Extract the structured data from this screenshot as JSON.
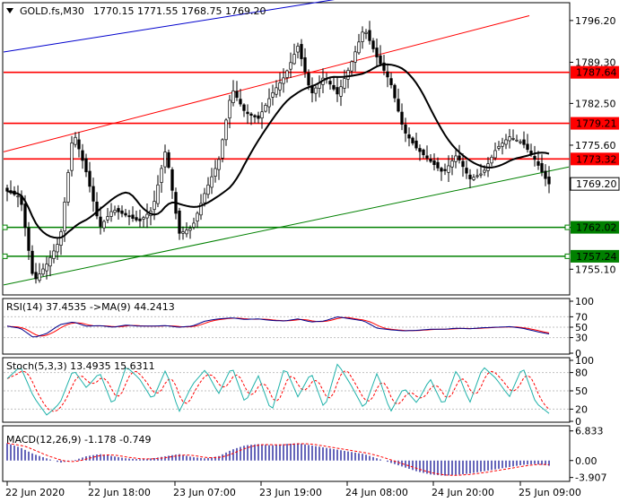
{
  "colors": {
    "frame": "#000000",
    "grid": "#c0c0c0",
    "bull": "#ffffff",
    "bear": "#000000",
    "ma": "#000000",
    "res": "#ff0000",
    "sup": "#008000",
    "channel_up": "#ff0000",
    "channel_hi": "#0000cd",
    "channel_lo": "#008000",
    "rsi": "#00008b",
    "rsi_ma": "#ff0000",
    "stoch_main": "#20b2aa",
    "stoch_sig": "#ff0000",
    "macd_hist": "#00008b",
    "macd_sig": "#ff0000",
    "last_price_bg": "#ffffff"
  },
  "chart_data": [
    {
      "type": "candlestick",
      "title": "GOLD.fs,M30",
      "ohlc_text": "1770.15 1771.55 1768.75 1769.20",
      "ylim": [
        1751,
        1799
      ],
      "y_ticks": [
        "1796.20",
        "1789.30",
        "1782.50",
        "1775.60",
        "1768.75",
        "1762.00",
        "1755.10"
      ],
      "levels": [
        {
          "label": "1787.64",
          "value": 1787.64,
          "kind": "resistance"
        },
        {
          "label": "1779.21",
          "value": 1779.21,
          "kind": "resistance"
        },
        {
          "label": "1773.32",
          "value": 1773.32,
          "kind": "resistance"
        },
        {
          "label": "1762.02",
          "value": 1762.02,
          "kind": "support"
        },
        {
          "label": "1757.24",
          "value": 1757.24,
          "kind": "support"
        }
      ],
      "last_price": {
        "label": "1769.20",
        "value": 1769.2
      },
      "key_points": [
        1768,
        1767,
        1753,
        1756,
        1760,
        1778,
        1771,
        1762,
        1765,
        1764,
        1763,
        1765,
        1775,
        1761,
        1762,
        1768,
        1773,
        1785,
        1781,
        1780,
        1784,
        1787,
        1792,
        1784,
        1787,
        1784,
        1789,
        1795,
        1790,
        1786,
        1778,
        1775,
        1773,
        1771,
        1774,
        1770,
        1771,
        1775,
        1777,
        1776,
        1773,
        1769
      ],
      "x_ticks": [
        "22 Jun 2020",
        "22 Jun 18:00",
        "23 Jun 07:00",
        "23 Jun 19:00",
        "24 Jun 08:00",
        "24 Jun 20:00",
        "25 Jun 09:00"
      ]
    },
    {
      "type": "line",
      "title": "RSI(14) 37.4535 ->MA(9) 44.2413",
      "ylim": [
        0,
        100
      ],
      "y_ticks": [
        "100",
        "70",
        "50",
        "30",
        "0"
      ],
      "levels": [
        70,
        50,
        30
      ],
      "key_points": [
        52,
        48,
        30,
        38,
        55,
        60,
        52,
        53,
        50,
        54,
        52,
        52,
        53,
        50,
        52,
        62,
        66,
        68,
        65,
        66,
        63,
        62,
        66,
        60,
        62,
        70,
        66,
        62,
        48,
        45,
        43,
        44,
        46,
        46,
        48,
        47,
        49,
        50,
        51,
        48,
        42,
        37
      ]
    },
    {
      "type": "line",
      "title": "Stoch(5,3,3) 13.4935 15.6311",
      "ylim": [
        0,
        100
      ],
      "y_ticks": [
        "100",
        "80",
        "50",
        "20",
        "0"
      ],
      "levels": [
        80,
        50,
        20
      ],
      "key_points": [
        70,
        90,
        40,
        10,
        30,
        85,
        55,
        80,
        25,
        90,
        70,
        35,
        85,
        15,
        60,
        85,
        45,
        90,
        30,
        75,
        15,
        90,
        40,
        80,
        20,
        95,
        60,
        20,
        80,
        15,
        55,
        30,
        70,
        25,
        85,
        30,
        90,
        70,
        40,
        90,
        30,
        13
      ]
    },
    {
      "type": "bar",
      "title": "MACD(12,26,9) -1.178 -0.749",
      "ylim": [
        -4.6,
        7.6
      ],
      "y_ticks": [
        "6.833",
        "0.00",
        "-3.907"
      ],
      "levels": [
        0
      ],
      "key_points": [
        4,
        3,
        1.5,
        0.5,
        -0.5,
        0,
        1,
        1.5,
        1,
        0.5,
        0.3,
        0.5,
        1,
        1.5,
        0.8,
        0.5,
        1,
        2.5,
        3.5,
        3.8,
        3.5,
        3.8,
        4,
        3.5,
        3,
        2.5,
        2,
        1.5,
        0.5,
        -0.5,
        -1.5,
        -2.5,
        -3.2,
        -3.5,
        -3.3,
        -3,
        -2.5,
        -2,
        -1.5,
        -1,
        -0.8,
        -1.2
      ]
    }
  ]
}
